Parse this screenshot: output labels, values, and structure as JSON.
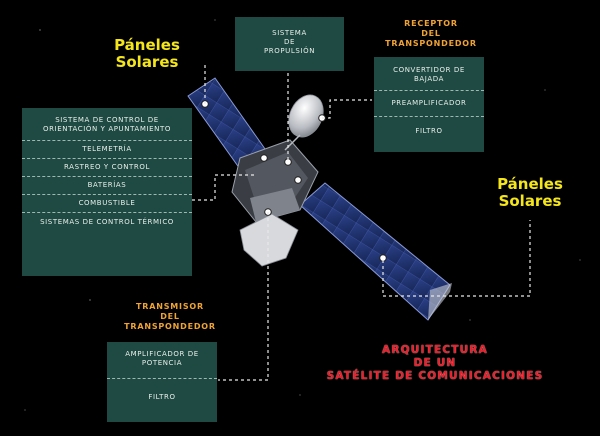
{
  "solar_left": {
    "line1": "Páneles",
    "line2": "Solares"
  },
  "solar_right": {
    "line1": "Páneles",
    "line2": "Solares"
  },
  "propulsion": {
    "line1": "Sistema",
    "line2": "de",
    "line3": "propulsión"
  },
  "receiver": {
    "title1": "Receptor",
    "title2": "del",
    "title3": "transpondedor",
    "items": [
      "Convertidor de bajada",
      "Preamplificador",
      "Filtro"
    ]
  },
  "bus": {
    "items": [
      "Sistema de control de orientación y apuntamiento",
      "Telemetría",
      "Rastreo y control",
      "Baterías",
      "Combustible",
      "Sistemas de control térmico"
    ]
  },
  "transmitter": {
    "title1": "Transmisor",
    "title2": "del",
    "title3": "transpondedor",
    "items": [
      "Amplificador de potencia",
      "Filtro"
    ]
  },
  "caption": {
    "line1": "Arquitectura",
    "line2": "de un",
    "line3": "satélite de comunicaciones"
  },
  "colors": {
    "box": "#1f4a43",
    "yellow": "#f4e61a",
    "orange": "#f0a335",
    "red": "#f21b27"
  }
}
